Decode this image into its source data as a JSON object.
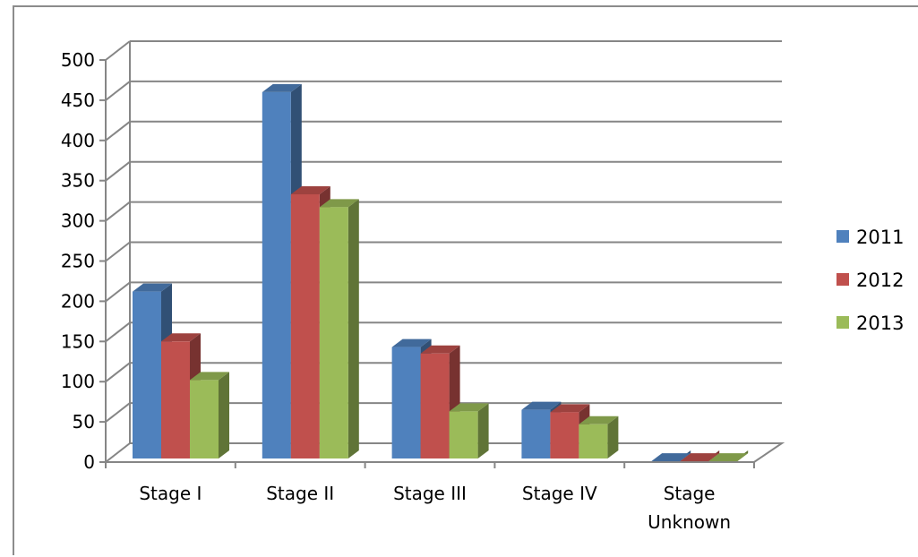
{
  "chart_data": {
    "type": "bar",
    "title": "",
    "xlabel": "",
    "ylabel": "",
    "categories": [
      "Stage I",
      "Stage II",
      "Stage III",
      "Stage IV",
      "Stage Unknown"
    ],
    "category_lines": [
      [
        "Stage I"
      ],
      [
        "Stage II"
      ],
      [
        "Stage III"
      ],
      [
        "Stage IV"
      ],
      [
        "Stage",
        "Unknown"
      ]
    ],
    "series": [
      {
        "name": "2011",
        "color": "#4f81bd",
        "values": [
          212,
          460,
          143,
          65,
          1
        ]
      },
      {
        "name": "2012",
        "color": "#c0504d",
        "values": [
          150,
          333,
          135,
          62,
          1
        ]
      },
      {
        "name": "2013",
        "color": "#9bbb59",
        "values": [
          102,
          317,
          63,
          47,
          1
        ]
      }
    ],
    "ylim": [
      0,
      500
    ],
    "yticks": [
      0,
      50,
      100,
      150,
      200,
      250,
      300,
      350,
      400,
      450,
      500
    ],
    "grid": true,
    "style": "3d-clustered-column",
    "legend_position": "right"
  }
}
